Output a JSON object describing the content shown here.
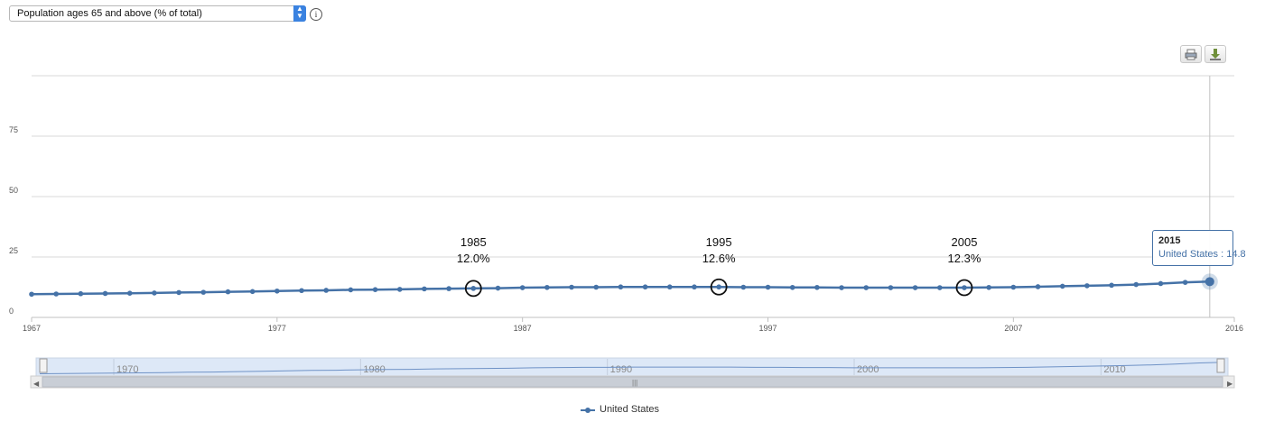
{
  "indicator_selector": {
    "selected": "Population ages 65 and above (% of total)"
  },
  "info_icon": "info-icon",
  "toolbar": {
    "print_icon": "printer-icon",
    "download_icon": "download-icon"
  },
  "chart_data": {
    "type": "line",
    "x_range": [
      1967,
      2016
    ],
    "ylim": [
      0,
      100
    ],
    "y_ticks": [
      "0",
      "25",
      "50",
      "75"
    ],
    "x_ticks": [
      "1967",
      "1977",
      "1987",
      "1997",
      "2007",
      "2016"
    ],
    "grid": true,
    "series": [
      {
        "name": "United States",
        "color": "#4572a7",
        "x": [
          1967,
          1968,
          1969,
          1970,
          1971,
          1972,
          1973,
          1974,
          1975,
          1976,
          1977,
          1978,
          1979,
          1980,
          1981,
          1982,
          1983,
          1984,
          1985,
          1986,
          1987,
          1988,
          1989,
          1990,
          1991,
          1992,
          1993,
          1994,
          1995,
          1996,
          1997,
          1998,
          1999,
          2000,
          2001,
          2002,
          2003,
          2004,
          2005,
          2006,
          2007,
          2008,
          2009,
          2010,
          2011,
          2012,
          2013,
          2014,
          2015
        ],
        "y": [
          9.6,
          9.7,
          9.8,
          9.9,
          10.0,
          10.1,
          10.3,
          10.4,
          10.6,
          10.7,
          10.9,
          11.1,
          11.2,
          11.4,
          11.5,
          11.6,
          11.8,
          11.9,
          12.0,
          12.1,
          12.3,
          12.4,
          12.5,
          12.5,
          12.6,
          12.6,
          12.6,
          12.6,
          12.6,
          12.5,
          12.5,
          12.4,
          12.4,
          12.3,
          12.3,
          12.3,
          12.3,
          12.3,
          12.3,
          12.4,
          12.5,
          12.7,
          12.9,
          13.1,
          13.3,
          13.6,
          14.0,
          14.5,
          14.8
        ]
      }
    ],
    "annotations": [
      {
        "x": 1985,
        "year_label": "1985",
        "value_label": "12.0%"
      },
      {
        "x": 1995,
        "year_label": "1995",
        "value_label": "12.6%"
      },
      {
        "x": 2005,
        "year_label": "2005",
        "value_label": "12.3%"
      }
    ],
    "tooltip": {
      "year": "2015",
      "text": "United States : 14.8"
    },
    "navigator": {
      "labels": [
        "1970",
        "1980",
        "1990",
        "2000",
        "2010"
      ]
    },
    "legend": {
      "position": "bottom-center"
    }
  }
}
